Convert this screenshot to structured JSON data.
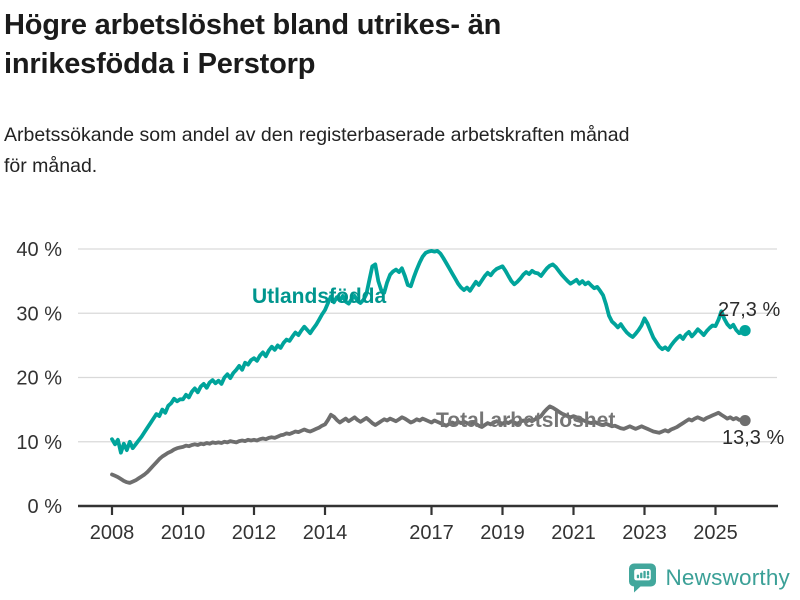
{
  "header": {
    "title_lines": [
      "Högre arbetslöshet bland utrikes- än",
      "inrikesfödda i Perstorp"
    ],
    "subtitle_lines": [
      "Arbetssökande som andel av den registerbaserade arbetskraften månad",
      "för månad."
    ]
  },
  "footer": {
    "brand": "Newsworthy",
    "logo_color": "#42a79c",
    "text_color": "#3ba097"
  },
  "chart_data": {
    "type": "line",
    "title": "Högre arbetslöshet bland utrikes- än inrikesfödda i Perstorp",
    "subtitle": "Arbetssökande som andel av den registerbaserade arbetskraften månad för månad.",
    "frequency": "monthly",
    "x_start": "2008-01",
    "x_end": "2025-11",
    "x_start_year": 2008,
    "ylim": [
      0,
      40
    ],
    "grid": "horizontal",
    "grid_color": "#d9d9d9",
    "axis_color": "#333333",
    "tick_text_color": "#333333",
    "legend": "inline-labels",
    "yticks": [
      {
        "value": 0,
        "label": "0 %"
      },
      {
        "value": 10,
        "label": "10 %"
      },
      {
        "value": 20,
        "label": "20 %"
      },
      {
        "value": 30,
        "label": "30 %"
      },
      {
        "value": 40,
        "label": "40 %"
      }
    ],
    "xticks": [
      2008,
      2010,
      2012,
      2014,
      2017,
      2019,
      2021,
      2023,
      2025
    ],
    "series": [
      {
        "name": "Utlandsfödda",
        "color": "#00a49b",
        "label_color": "#00968e",
        "end_label": "27,3 %",
        "end_value": 27.3,
        "values": [
          10.4,
          9.6,
          10.3,
          8.3,
          9.7,
          8.7,
          10.0,
          9.0,
          9.6,
          10.2,
          10.8,
          11.5,
          12.2,
          12.9,
          13.6,
          14.3,
          14.0,
          15.0,
          14.5,
          15.6,
          16.0,
          16.7,
          16.3,
          16.6,
          16.6,
          17.3,
          16.9,
          17.8,
          18.3,
          17.7,
          18.6,
          19.0,
          18.4,
          19.2,
          19.6,
          19.1,
          19.5,
          19.0,
          20.0,
          20.5,
          19.9,
          20.7,
          21.2,
          21.8,
          21.2,
          22.3,
          22.0,
          22.7,
          23.0,
          22.6,
          23.4,
          23.9,
          23.3,
          24.2,
          24.8,
          24.3,
          25.0,
          24.6,
          25.4,
          25.9,
          25.7,
          26.4,
          27.0,
          26.6,
          27.3,
          27.9,
          27.4,
          26.9,
          27.6,
          28.2,
          29.0,
          29.8,
          30.5,
          31.6,
          32.6,
          31.7,
          32.5,
          32.0,
          32.7,
          31.8,
          31.5,
          32.2,
          32.7,
          31.9,
          31.6,
          32.1,
          33.0,
          35.2,
          37.3,
          37.6,
          35.0,
          33.6,
          33.2,
          34.8,
          36.0,
          36.5,
          36.8,
          36.4,
          37.0,
          35.8,
          34.4,
          34.2,
          35.6,
          36.8,
          37.9,
          38.8,
          39.4,
          39.6,
          39.7,
          39.6,
          39.7,
          39.3,
          38.6,
          37.8,
          37.0,
          36.2,
          35.4,
          34.6,
          34.0,
          33.6,
          34.0,
          33.5,
          34.2,
          34.9,
          34.4,
          35.1,
          35.8,
          36.3,
          35.9,
          36.5,
          36.9,
          37.1,
          37.3,
          36.6,
          35.8,
          35.0,
          34.5,
          34.9,
          35.4,
          36.0,
          36.4,
          36.1,
          36.6,
          36.3,
          36.2,
          35.8,
          36.4,
          37.0,
          37.4,
          37.6,
          37.2,
          36.6,
          36.0,
          35.5,
          35.0,
          34.6,
          34.9,
          35.2,
          34.6,
          35.0,
          34.5,
          34.8,
          34.3,
          33.9,
          34.1,
          33.5,
          32.8,
          31.4,
          29.6,
          28.7,
          28.3,
          27.8,
          28.3,
          27.6,
          27.0,
          26.6,
          26.3,
          26.8,
          27.4,
          28.1,
          29.2,
          28.4,
          27.3,
          26.2,
          25.5,
          24.8,
          24.4,
          24.7,
          24.3,
          25.0,
          25.6,
          26.1,
          26.5,
          26.0,
          26.7,
          27.1,
          26.4,
          26.9,
          27.5,
          27.1,
          26.6,
          27.2,
          27.7,
          28.1,
          28.0,
          29.0,
          30.3,
          29.1,
          28.3,
          27.8,
          28.2,
          27.4,
          26.9,
          27.0,
          27.3
        ]
      },
      {
        "name": "Total arbetslöshet",
        "color": "#6e6e6e",
        "label_color": "#757575",
        "end_label": "13,3 %",
        "end_value": 13.3,
        "values": [
          4.9,
          4.7,
          4.5,
          4.2,
          3.9,
          3.7,
          3.6,
          3.8,
          4.0,
          4.3,
          4.6,
          4.9,
          5.3,
          5.8,
          6.3,
          6.8,
          7.3,
          7.7,
          8.0,
          8.3,
          8.5,
          8.8,
          9.0,
          9.1,
          9.2,
          9.4,
          9.3,
          9.5,
          9.6,
          9.5,
          9.7,
          9.6,
          9.8,
          9.7,
          9.9,
          9.8,
          9.9,
          9.8,
          10.0,
          9.9,
          10.1,
          10.0,
          9.9,
          10.1,
          10.2,
          10.1,
          10.3,
          10.2,
          10.3,
          10.2,
          10.4,
          10.5,
          10.4,
          10.6,
          10.7,
          10.6,
          10.8,
          11.0,
          11.1,
          11.3,
          11.2,
          11.4,
          11.6,
          11.5,
          11.7,
          11.9,
          11.7,
          11.6,
          11.8,
          12.0,
          12.2,
          12.5,
          12.7,
          13.4,
          14.2,
          13.9,
          13.4,
          13.0,
          13.3,
          13.6,
          13.2,
          13.5,
          13.8,
          13.4,
          13.1,
          13.4,
          13.7,
          13.3,
          12.9,
          12.6,
          12.9,
          13.2,
          13.5,
          13.3,
          13.6,
          13.4,
          13.2,
          13.5,
          13.8,
          13.6,
          13.3,
          13.0,
          13.2,
          13.5,
          13.3,
          13.6,
          13.4,
          13.2,
          13.0,
          13.3,
          13.1,
          12.9,
          12.7,
          12.5,
          12.8,
          13.0,
          12.8,
          13.1,
          12.9,
          13.1,
          12.9,
          12.7,
          13.0,
          12.8,
          12.5,
          12.3,
          12.6,
          12.9,
          12.7,
          13.0,
          13.2,
          13.0,
          12.8,
          13.1,
          12.9,
          13.2,
          13.0,
          12.8,
          13.1,
          13.3,
          13.1,
          13.4,
          13.2,
          13.5,
          13.7,
          14.0,
          14.6,
          15.1,
          15.5,
          15.3,
          15.0,
          14.7,
          14.4,
          14.2,
          14.0,
          13.8,
          14.0,
          13.8,
          13.6,
          13.4,
          13.2,
          13.0,
          12.9,
          13.1,
          12.9,
          12.7,
          12.6,
          12.8,
          12.6,
          12.4,
          12.5,
          12.3,
          12.1,
          12.0,
          12.2,
          12.4,
          12.2,
          12.0,
          12.2,
          12.4,
          12.2,
          12.0,
          11.8,
          11.6,
          11.5,
          11.4,
          11.6,
          11.8,
          11.6,
          11.9,
          12.1,
          12.3,
          12.6,
          12.9,
          13.2,
          13.5,
          13.3,
          13.6,
          13.8,
          13.6,
          13.4,
          13.7,
          13.9,
          14.1,
          14.3,
          14.5,
          14.2,
          13.9,
          13.6,
          13.8,
          13.5,
          13.7,
          13.4,
          13.4,
          13.3
        ]
      }
    ]
  }
}
